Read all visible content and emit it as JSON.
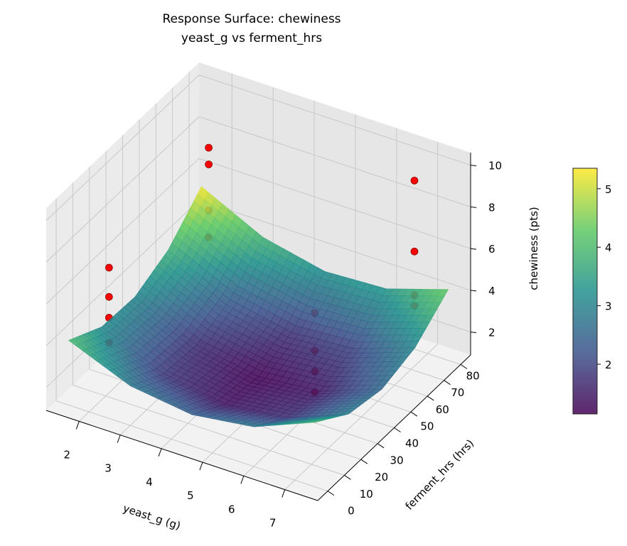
{
  "chart_data": {
    "type": "surface3d",
    "title": "Response Surface: chewiness",
    "subtitle": "yeast_g vs ferment_hrs",
    "xlabel": "yeast_g (g)",
    "ylabel": "ferment_hrs (hrs)",
    "zlabel": "chewiness (pts)",
    "xlim": [
      1.2,
      7.8
    ],
    "ylim": [
      -6,
      86
    ],
    "zlim": [
      0.9,
      10.6
    ],
    "xticks": [
      2,
      3,
      4,
      5,
      6,
      7
    ],
    "yticks": [
      0,
      10,
      20,
      30,
      40,
      50,
      60,
      70,
      80
    ],
    "zticks": [
      2,
      4,
      6,
      8,
      10
    ],
    "grid": true,
    "colormap": "viridis",
    "colors": {
      "points": "#ff0000",
      "points_edge": "#7a0000",
      "pane": "#f2f2f2",
      "grid": "#c8c8c8"
    },
    "colorbar": {
      "range": [
        1.15,
        5.35
      ],
      "ticks": [
        2,
        3,
        4,
        5
      ],
      "placement": "right"
    },
    "surface": {
      "x": [
        1.5,
        3.0,
        4.5,
        6.0,
        7.5
      ],
      "y": [
        0,
        20,
        40,
        60,
        80
      ],
      "z": [
        [
          4.0,
          2.8,
          2.4,
          2.8,
          4.0
        ],
        [
          3.13,
          1.86,
          1.4,
          1.74,
          2.88
        ],
        [
          3.05,
          1.73,
          1.2,
          1.48,
          2.55
        ],
        [
          3.78,
          2.39,
          1.8,
          2.01,
          3.03
        ],
        [
          5.3,
          3.85,
          3.2,
          3.35,
          4.3
        ]
      ]
    },
    "points": [
      {
        "x": 2,
        "y": 12,
        "z": 6.9
      },
      {
        "x": 2,
        "y": 12,
        "z": 5.5
      },
      {
        "x": 2,
        "y": 12,
        "z": 4.5
      },
      {
        "x": 2,
        "y": 12,
        "z": 3.3
      },
      {
        "x": 2,
        "y": 72,
        "z": 8.1
      },
      {
        "x": 2,
        "y": 72,
        "z": 7.3
      },
      {
        "x": 2,
        "y": 72,
        "z": 5.1
      },
      {
        "x": 2,
        "y": 72,
        "z": 3.8
      },
      {
        "x": 7,
        "y": 12,
        "z": 8.0
      },
      {
        "x": 7,
        "y": 12,
        "z": 6.2
      },
      {
        "x": 7,
        "y": 12,
        "z": 5.2
      },
      {
        "x": 7,
        "y": 12,
        "z": 4.2
      },
      {
        "x": 7,
        "y": 72,
        "z": 9.8
      },
      {
        "x": 7,
        "y": 72,
        "z": 6.4
      },
      {
        "x": 7,
        "y": 72,
        "z": 4.3
      },
      {
        "x": 7,
        "y": 72,
        "z": 3.8
      }
    ]
  }
}
